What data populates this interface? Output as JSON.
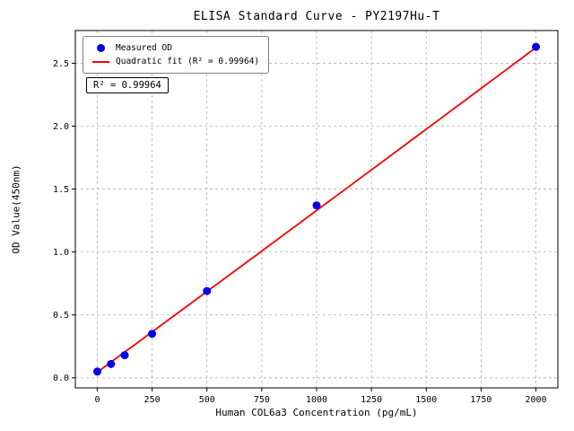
{
  "chart_data": {
    "type": "scatter",
    "title": "ELISA Standard Curve - PY2197Hu-T",
    "xlabel": "Human COL6a3 Concentration (pg/mL)",
    "ylabel": "OD Value(450nm)",
    "xlim": [
      -100,
      2100
    ],
    "ylim": [
      -0.08,
      2.76
    ],
    "xticks": [
      0,
      250,
      500,
      750,
      1000,
      1250,
      1500,
      1750,
      2000
    ],
    "yticks": [
      0.0,
      0.5,
      1.0,
      1.5,
      2.0,
      2.5
    ],
    "grid": true,
    "colors": {
      "grid": "#b0b0b0",
      "axes": "#000000"
    },
    "legend": {
      "position": "upper-left",
      "entries": [
        "Measured OD",
        "Quadratic fit (R² = 0.99964)"
      ]
    },
    "series": [
      {
        "name": "Measured OD",
        "type": "scatter",
        "color": "#0000ee",
        "x": [
          0,
          62.5,
          125,
          250,
          500,
          1000,
          2000
        ],
        "y": [
          0.05,
          0.11,
          0.18,
          0.35,
          0.69,
          1.37,
          2.63
        ]
      },
      {
        "name": "Quadratic fit",
        "type": "line",
        "color": "#ff0000",
        "fit": {
          "kind": "quadratic",
          "coefficients": [
            0.045,
            0.00128,
            5e-09
          ],
          "domain": [
            0,
            2000
          ],
          "r_squared": 0.99964
        }
      }
    ],
    "annotation": {
      "text": "R² = 0.99964"
    }
  }
}
